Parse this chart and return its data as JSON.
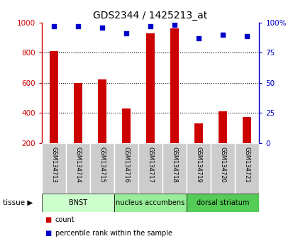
{
  "title": "GDS2344 / 1425213_at",
  "samples": [
    "GSM134713",
    "GSM134714",
    "GSM134715",
    "GSM134716",
    "GSM134717",
    "GSM134718",
    "GSM134719",
    "GSM134720",
    "GSM134721"
  ],
  "counts": [
    810,
    600,
    625,
    430,
    930,
    960,
    330,
    410,
    375
  ],
  "percentiles": [
    97,
    97,
    96,
    91,
    97,
    98,
    87,
    90,
    89
  ],
  "tissues": [
    {
      "label": "BNST",
      "start": 0,
      "end": 3,
      "color": "#ccffcc"
    },
    {
      "label": "nucleus accumbens",
      "start": 3,
      "end": 6,
      "color": "#99ee99"
    },
    {
      "label": "dorsal striatum",
      "start": 6,
      "end": 9,
      "color": "#55cc55"
    }
  ],
  "ylim_left": [
    200,
    1000
  ],
  "ylim_right": [
    0,
    100
  ],
  "yticks_left": [
    200,
    400,
    600,
    800,
    1000
  ],
  "yticks_right": [
    0,
    25,
    50,
    75,
    100
  ],
  "yticklabels_right": [
    "0",
    "25",
    "50",
    "75",
    "100%"
  ],
  "bar_color": "#cc0000",
  "dot_color": "#0000cc",
  "left_tick_color": "#cc0000",
  "right_tick_color": "#0000cc",
  "bar_width": 0.35,
  "tissue_label": "tissue",
  "legend_count_label": "count",
  "legend_percentile_label": "percentile rank within the sample",
  "sample_bg_color": "#cccccc",
  "grid_dotted_color": "#000000"
}
